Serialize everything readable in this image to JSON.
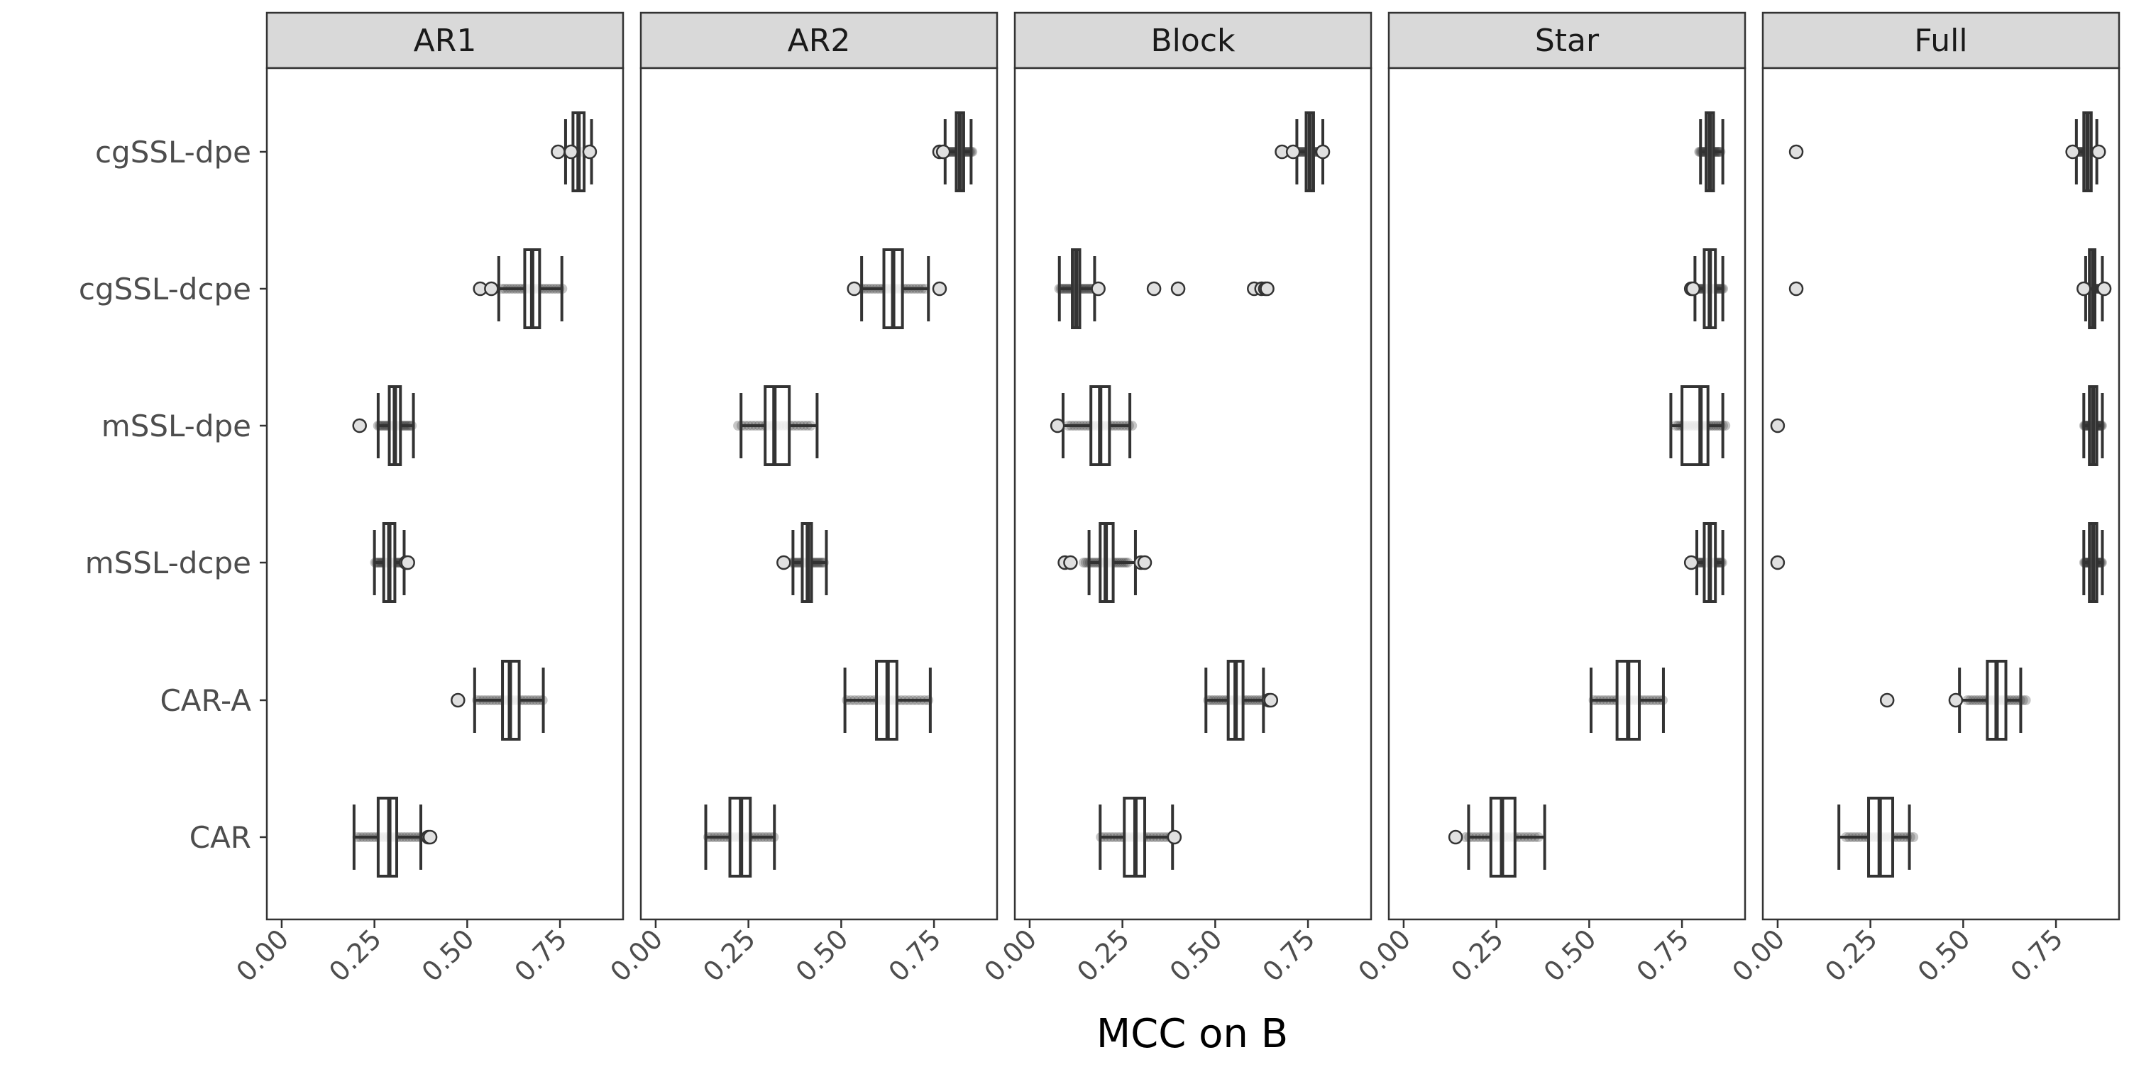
{
  "chart_data": {
    "type": "boxplot",
    "orientation": "horizontal",
    "facets": [
      "AR1",
      "AR2",
      "Block",
      "Star",
      "Full"
    ],
    "categories": [
      "cgSSL-dpe",
      "cgSSL-dcpe",
      "mSSL-dpe",
      "mSSL-dcpe",
      "CAR-A",
      "CAR"
    ],
    "xlabel": "MCC on B",
    "ylabel": "",
    "xlim": [
      -0.04,
      0.92
    ],
    "x_ticks": [
      0.0,
      0.25,
      0.5,
      0.75
    ],
    "x_tick_labels": [
      "0.00",
      "0.25",
      "0.50",
      "0.75"
    ],
    "grid": false,
    "colors": {
      "strip_fill": "#d9d9d9",
      "frame": "#333333",
      "box_line": "#333333",
      "point": "#333333",
      "outlier_fill": "#e0e0e0",
      "tick_label": "#4d4d4d"
    },
    "panels": [
      {
        "facet": "AR1",
        "boxes": [
          {
            "category": "cgSSL-dpe",
            "whisker_low": 0.765,
            "q1": 0.785,
            "median": 0.8,
            "q3": 0.815,
            "whisker_high": 0.835,
            "outliers": [
              0.745,
              0.78,
              0.83
            ]
          },
          {
            "category": "cgSSL-dcpe",
            "whisker_low": 0.585,
            "q1": 0.655,
            "median": 0.675,
            "q3": 0.695,
            "whisker_high": 0.755,
            "outliers": [
              0.535,
              0.565
            ]
          },
          {
            "category": "mSSL-dpe",
            "whisker_low": 0.26,
            "q1": 0.29,
            "median": 0.305,
            "q3": 0.32,
            "whisker_high": 0.355,
            "outliers": [
              0.21
            ]
          },
          {
            "category": "mSSL-dcpe",
            "whisker_low": 0.25,
            "q1": 0.275,
            "median": 0.29,
            "q3": 0.305,
            "whisker_high": 0.33,
            "outliers": [
              0.335,
              0.34
            ]
          },
          {
            "category": "CAR-A",
            "whisker_low": 0.52,
            "q1": 0.595,
            "median": 0.615,
            "q3": 0.64,
            "whisker_high": 0.705,
            "outliers": [
              0.475
            ]
          },
          {
            "category": "CAR",
            "whisker_low": 0.195,
            "q1": 0.26,
            "median": 0.29,
            "q3": 0.31,
            "whisker_high": 0.375,
            "outliers": [
              0.395,
              0.4
            ]
          }
        ]
      },
      {
        "facet": "AR2",
        "boxes": [
          {
            "category": "cgSSL-dpe",
            "whisker_low": 0.78,
            "q1": 0.81,
            "median": 0.82,
            "q3": 0.83,
            "whisker_high": 0.85,
            "outliers": [
              0.765,
              0.775
            ]
          },
          {
            "category": "cgSSL-dcpe",
            "whisker_low": 0.555,
            "q1": 0.615,
            "median": 0.64,
            "q3": 0.665,
            "whisker_high": 0.735,
            "outliers": [
              0.535,
              0.765
            ]
          },
          {
            "category": "mSSL-dpe",
            "whisker_low": 0.23,
            "q1": 0.295,
            "median": 0.32,
            "q3": 0.36,
            "whisker_high": 0.435,
            "outliers": []
          },
          {
            "category": "mSSL-dcpe",
            "whisker_low": 0.37,
            "q1": 0.395,
            "median": 0.41,
            "q3": 0.42,
            "whisker_high": 0.46,
            "outliers": [
              0.345
            ]
          },
          {
            "category": "CAR-A",
            "whisker_low": 0.51,
            "q1": 0.595,
            "median": 0.625,
            "q3": 0.65,
            "whisker_high": 0.74,
            "outliers": []
          },
          {
            "category": "CAR",
            "whisker_low": 0.135,
            "q1": 0.2,
            "median": 0.23,
            "q3": 0.255,
            "whisker_high": 0.32,
            "outliers": []
          }
        ]
      },
      {
        "facet": "Block",
        "boxes": [
          {
            "category": "cgSSL-dpe",
            "whisker_low": 0.72,
            "q1": 0.745,
            "median": 0.755,
            "q3": 0.765,
            "whisker_high": 0.79,
            "outliers": [
              0.68,
              0.71,
              0.79
            ]
          },
          {
            "category": "cgSSL-dcpe",
            "whisker_low": 0.08,
            "q1": 0.115,
            "median": 0.125,
            "q3": 0.135,
            "whisker_high": 0.175,
            "outliers": [
              0.185,
              0.335,
              0.4,
              0.605,
              0.625,
              0.635,
              0.64
            ]
          },
          {
            "category": "mSSL-dpe",
            "whisker_low": 0.09,
            "q1": 0.165,
            "median": 0.19,
            "q3": 0.215,
            "whisker_high": 0.27,
            "outliers": [
              0.075
            ]
          },
          {
            "category": "mSSL-dcpe",
            "whisker_low": 0.16,
            "q1": 0.19,
            "median": 0.205,
            "q3": 0.225,
            "whisker_high": 0.285,
            "outliers": [
              0.095,
              0.11,
              0.3,
              0.31
            ]
          },
          {
            "category": "CAR-A",
            "whisker_low": 0.475,
            "q1": 0.535,
            "median": 0.555,
            "q3": 0.575,
            "whisker_high": 0.63,
            "outliers": [
              0.645,
              0.65
            ]
          },
          {
            "category": "CAR",
            "whisker_low": 0.19,
            "q1": 0.255,
            "median": 0.285,
            "q3": 0.31,
            "whisker_high": 0.385,
            "outliers": [
              0.39
            ]
          }
        ]
      },
      {
        "facet": "Star",
        "boxes": [
          {
            "category": "cgSSL-dpe",
            "whisker_low": 0.8,
            "q1": 0.815,
            "median": 0.825,
            "q3": 0.835,
            "whisker_high": 0.86,
            "outliers": []
          },
          {
            "category": "cgSSL-dcpe",
            "whisker_low": 0.785,
            "q1": 0.81,
            "median": 0.825,
            "q3": 0.84,
            "whisker_high": 0.86,
            "outliers": [
              0.775,
              0.78
            ]
          },
          {
            "category": "mSSL-dpe",
            "whisker_low": 0.72,
            "q1": 0.75,
            "median": 0.8,
            "q3": 0.82,
            "whisker_high": 0.86,
            "outliers": []
          },
          {
            "category": "mSSL-dcpe",
            "whisker_low": 0.79,
            "q1": 0.81,
            "median": 0.825,
            "q3": 0.84,
            "whisker_high": 0.86,
            "outliers": [
              0.775
            ]
          },
          {
            "category": "CAR-A",
            "whisker_low": 0.505,
            "q1": 0.575,
            "median": 0.605,
            "q3": 0.635,
            "whisker_high": 0.7,
            "outliers": []
          },
          {
            "category": "CAR",
            "whisker_low": 0.175,
            "q1": 0.235,
            "median": 0.265,
            "q3": 0.3,
            "whisker_high": 0.38,
            "outliers": [
              0.14
            ]
          }
        ]
      },
      {
        "facet": "Full",
        "boxes": [
          {
            "category": "cgSSL-dpe",
            "whisker_low": 0.805,
            "q1": 0.825,
            "median": 0.835,
            "q3": 0.845,
            "whisker_high": 0.86,
            "outliers": [
              0.05,
              0.795,
              0.865
            ]
          },
          {
            "category": "cgSSL-dcpe",
            "whisker_low": 0.83,
            "q1": 0.84,
            "median": 0.85,
            "q3": 0.855,
            "whisker_high": 0.875,
            "outliers": [
              0.05,
              0.825,
              0.88
            ]
          },
          {
            "category": "mSSL-dpe",
            "whisker_low": 0.825,
            "q1": 0.84,
            "median": 0.85,
            "q3": 0.86,
            "whisker_high": 0.875,
            "outliers": [
              0.0
            ]
          },
          {
            "category": "mSSL-dcpe",
            "whisker_low": 0.825,
            "q1": 0.84,
            "median": 0.85,
            "q3": 0.86,
            "whisker_high": 0.875,
            "outliers": [
              0.0
            ]
          },
          {
            "category": "CAR-A",
            "whisker_low": 0.49,
            "q1": 0.565,
            "median": 0.59,
            "q3": 0.615,
            "whisker_high": 0.655,
            "outliers": [
              0.295,
              0.48
            ]
          },
          {
            "category": "CAR",
            "whisker_low": 0.165,
            "q1": 0.245,
            "median": 0.275,
            "q3": 0.31,
            "whisker_high": 0.355,
            "outliers": []
          }
        ]
      }
    ]
  }
}
